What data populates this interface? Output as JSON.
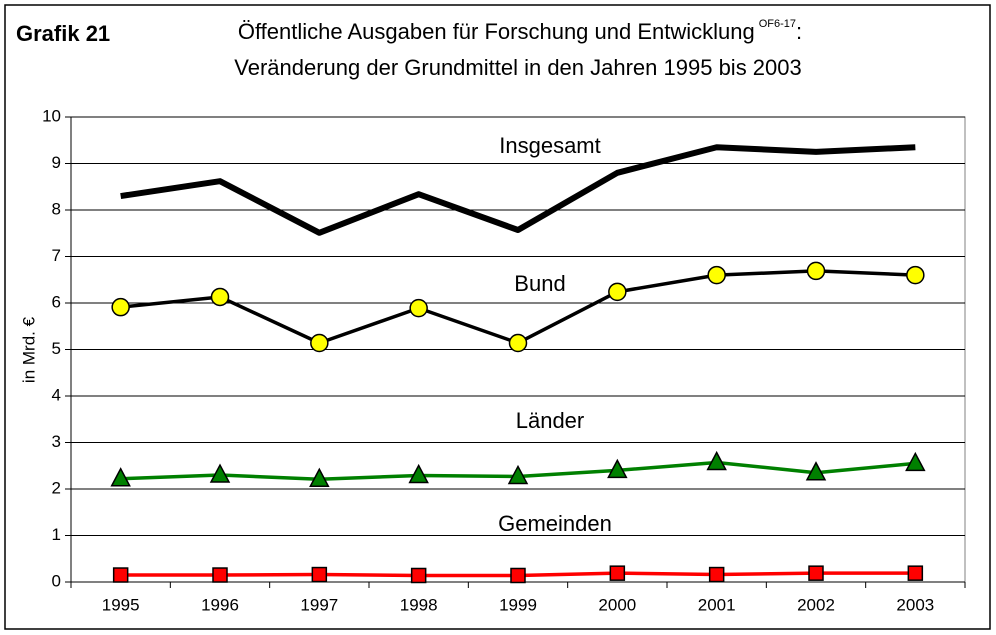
{
  "chart_data": {
    "type": "line",
    "label": "Grafik 21",
    "title": "Öffentliche Ausgaben für Forschung und Entwicklung",
    "title_superscript": "OF6-17",
    "title_end": ":",
    "subtitle": "Veränderung der Grundmittel in den Jahren 1995 bis 2003",
    "y_label": "in Mrd. €",
    "categories": [
      "1995",
      "1996",
      "1997",
      "1998",
      "1999",
      "2000",
      "2001",
      "2002",
      "2003"
    ],
    "ylim": [
      0,
      10
    ],
    "yticks": [
      0,
      1,
      2,
      3,
      4,
      5,
      6,
      7,
      8,
      9,
      10
    ],
    "grid": true,
    "series": [
      {
        "name": "Insgesamt",
        "color": "#000000",
        "marker": "none",
        "values": [
          8.3,
          8.62,
          7.51,
          8.34,
          7.57,
          8.8,
          9.35,
          9.25,
          9.35
        ]
      },
      {
        "name": "Bund",
        "color": "#000000",
        "marker": "circle",
        "marker_color": "#ffff00",
        "values": [
          5.91,
          6.13,
          5.14,
          5.89,
          5.14,
          6.24,
          6.6,
          6.69,
          6.6
        ]
      },
      {
        "name": "Länder",
        "color": "#008000",
        "marker": "triangle",
        "marker_color": "#008000",
        "values": [
          2.22,
          2.3,
          2.21,
          2.29,
          2.27,
          2.4,
          2.57,
          2.35,
          2.55
        ]
      },
      {
        "name": "Gemeinden",
        "color": "#ff0000",
        "marker": "square",
        "marker_color": "#ff0000",
        "values": [
          0.15,
          0.15,
          0.16,
          0.14,
          0.14,
          0.19,
          0.16,
          0.19,
          0.19
        ]
      }
    ]
  }
}
